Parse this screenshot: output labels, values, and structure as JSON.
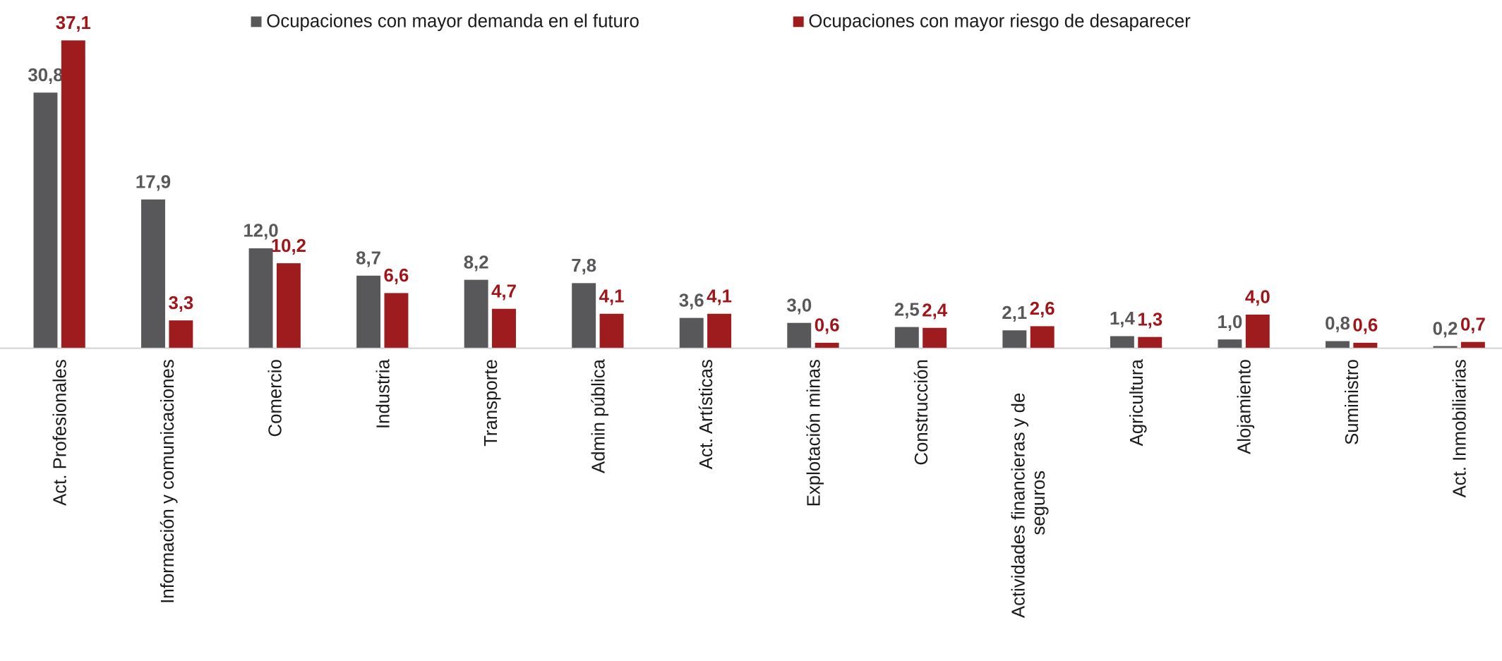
{
  "chart_data": {
    "type": "bar",
    "categories": [
      "Act. Profesionales",
      "Información y comunicaciones",
      "Comercio",
      "Industria",
      "Transporte",
      "Admin pública",
      "Act. Artísticas",
      "Explotación minas",
      "Construcción",
      "Actividades financieras y de seguros",
      "Agricultura",
      "Alojamiento",
      "Suministro",
      "Act. Inmobiliarias"
    ],
    "series": [
      {
        "name": "Ocupaciones con mayor demanda en el futuro",
        "color": "#58585a",
        "values": [
          30.8,
          17.9,
          12.0,
          8.7,
          8.2,
          7.8,
          3.6,
          3.0,
          2.5,
          2.1,
          1.4,
          1.0,
          0.8,
          0.2
        ],
        "value_labels": [
          "30,8",
          "17,9",
          "12,0",
          "8,7",
          "8,2",
          "7,8",
          "3,6",
          "3,0",
          "2,5",
          "2,1",
          "1,4",
          "1,0",
          "0,8",
          "0,2"
        ]
      },
      {
        "name": "Ocupaciones con mayor riesgo de desaparecer",
        "color": "#9e1b1e",
        "values": [
          37.1,
          3.3,
          10.2,
          6.6,
          4.7,
          4.1,
          4.1,
          0.6,
          2.4,
          2.6,
          1.3,
          4.0,
          0.6,
          0.7
        ],
        "value_labels": [
          "37,1",
          "3,3",
          "10,2",
          "6,6",
          "4,7",
          "4,1",
          "4,1",
          "0,6",
          "2,4",
          "2,6",
          "1,3",
          "4,0",
          "0,6",
          "0,7"
        ]
      }
    ],
    "legend": "top"
  }
}
